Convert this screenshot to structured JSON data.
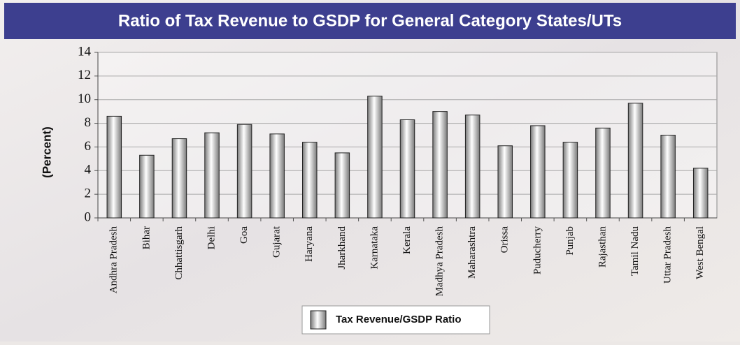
{
  "chart_data": {
    "type": "bar",
    "title": "Ratio of Tax Revenue to GSDP for General Category States/UTs",
    "y_label": "(Percent)",
    "categories": [
      "Andhra Pradesh",
      "Bihar",
      "Chhattisgarh",
      "Delhi",
      "Goa",
      "Gujarat",
      "Haryana",
      "Jharkhand",
      "Karnataka",
      "Kerala",
      "Madhya Pradesh",
      "Maharashtra",
      "Orissa",
      "Puducherry",
      "Punjab",
      "Rajasthan",
      "Tamil Nadu",
      "Uttar Pradesh",
      "West Bengal"
    ],
    "series": [
      {
        "name": "Tax Revenue/GSDP Ratio",
        "color": "#7a7a7a",
        "values": [
          8.6,
          5.3,
          6.7,
          7.2,
          7.9,
          7.1,
          6.4,
          5.5,
          10.3,
          8.3,
          9.0,
          8.7,
          6.1,
          7.8,
          6.4,
          7.6,
          9.7,
          7.0,
          4.2
        ]
      }
    ],
    "ylim": [
      0,
      14
    ],
    "yticks": [
      0,
      2,
      4,
      6,
      8,
      10,
      12,
      14
    ],
    "grid": true,
    "legend": "bottom"
  }
}
